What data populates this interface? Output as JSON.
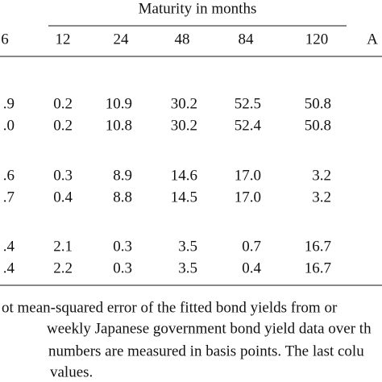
{
  "table": {
    "group_header": "Maturity in months",
    "columns": [
      "6",
      "12",
      "24",
      "48",
      "84",
      "120",
      "A"
    ],
    "rows": [
      [
        ".9",
        "0.2",
        "10.9",
        "30.2",
        "52.5",
        "50.8"
      ],
      [
        ".0",
        "0.2",
        "10.8",
        "30.2",
        "52.4",
        "50.8"
      ],
      [
        ".6",
        "0.3",
        "8.9",
        "14.6",
        "17.0",
        "3.2"
      ],
      [
        ".7",
        "0.4",
        "8.8",
        "14.5",
        "17.0",
        "3.2"
      ],
      [
        ".4",
        "2.1",
        "0.3",
        "3.5",
        "0.7",
        "16.7"
      ],
      [
        ".4",
        "2.2",
        "0.3",
        "3.5",
        "0.4",
        "16.7"
      ]
    ]
  },
  "footnote": [
    "ot mean-squared error of the fitted bond yields from or",
    "weekly Japanese government bond yield data over th",
    "numbers are measured in basis points. The last colu",
    "values."
  ]
}
